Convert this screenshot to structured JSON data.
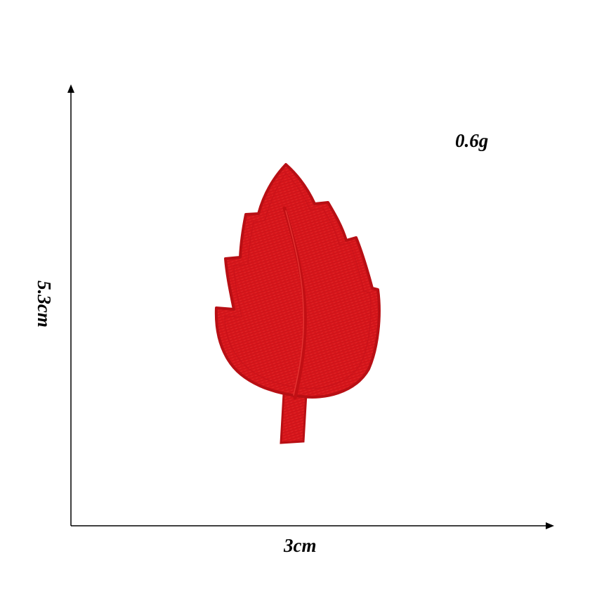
{
  "product": {
    "name": "",
    "weight_label": "0.6g",
    "width_label": "3cm",
    "height_label": "5.3cm"
  },
  "colors": {
    "background": "#ffffff",
    "axis": "#000000",
    "leaf_fill": "#d8161b",
    "leaf_border": "#b80f14",
    "leaf_vein": "#c20f14",
    "leaf_highlight": "#ea3a37"
  },
  "icons": {
    "leaf": "red-embroidered-leaf-patch",
    "axis_arrow_up": "arrow-up-icon",
    "axis_arrow_right": "arrow-right-icon"
  }
}
